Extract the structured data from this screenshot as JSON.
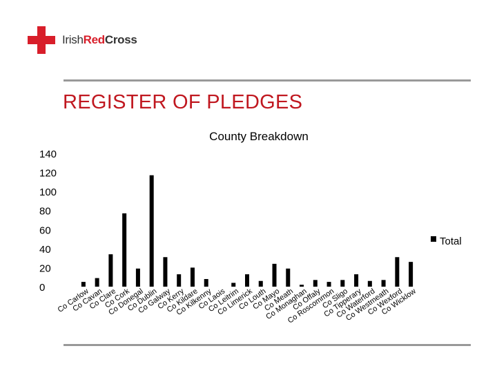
{
  "header": {
    "brand_prefix": "Irish",
    "brand_red": "Red",
    "brand_suffix": "Cross",
    "logo": "red-cross-icon",
    "accent_color": "#d81e2a"
  },
  "slide_title": "REGISTER OF PLEDGES",
  "chart_data": {
    "type": "bar",
    "title": "County Breakdown",
    "xlabel": "",
    "ylabel": "",
    "ylim": [
      0,
      140
    ],
    "yticks": [
      0,
      20,
      40,
      60,
      80,
      100,
      120,
      140
    ],
    "grid": false,
    "legend_position": "right",
    "categories": [
      "Co Carlow",
      "Co Cavan",
      "Co Clare",
      "Co Cork",
      "Co Donegal",
      "Co Dublin",
      "Co Galway",
      "Co Kerry",
      "Co Kildare",
      "Co Kilkenny",
      "Co Laois",
      "Co Leitrim",
      "Co Limerick",
      "Co Louth",
      "Co Mayo",
      "Co Meath",
      "Co Monaghan",
      "Co Offaly",
      "Co Roscommon",
      "Co Sligo",
      "Co Tipperary",
      "Co Waterford",
      "Co Westmeath",
      "Co Wexford",
      "Co Wicklow"
    ],
    "series": [
      {
        "name": "Total",
        "color": "#000000",
        "values": [
          5,
          9,
          34,
          77,
          19,
          117,
          31,
          13,
          20,
          8,
          0,
          4,
          13,
          6,
          24,
          19,
          2,
          7,
          5,
          7,
          13,
          6,
          7,
          31,
          26
        ]
      }
    ]
  }
}
